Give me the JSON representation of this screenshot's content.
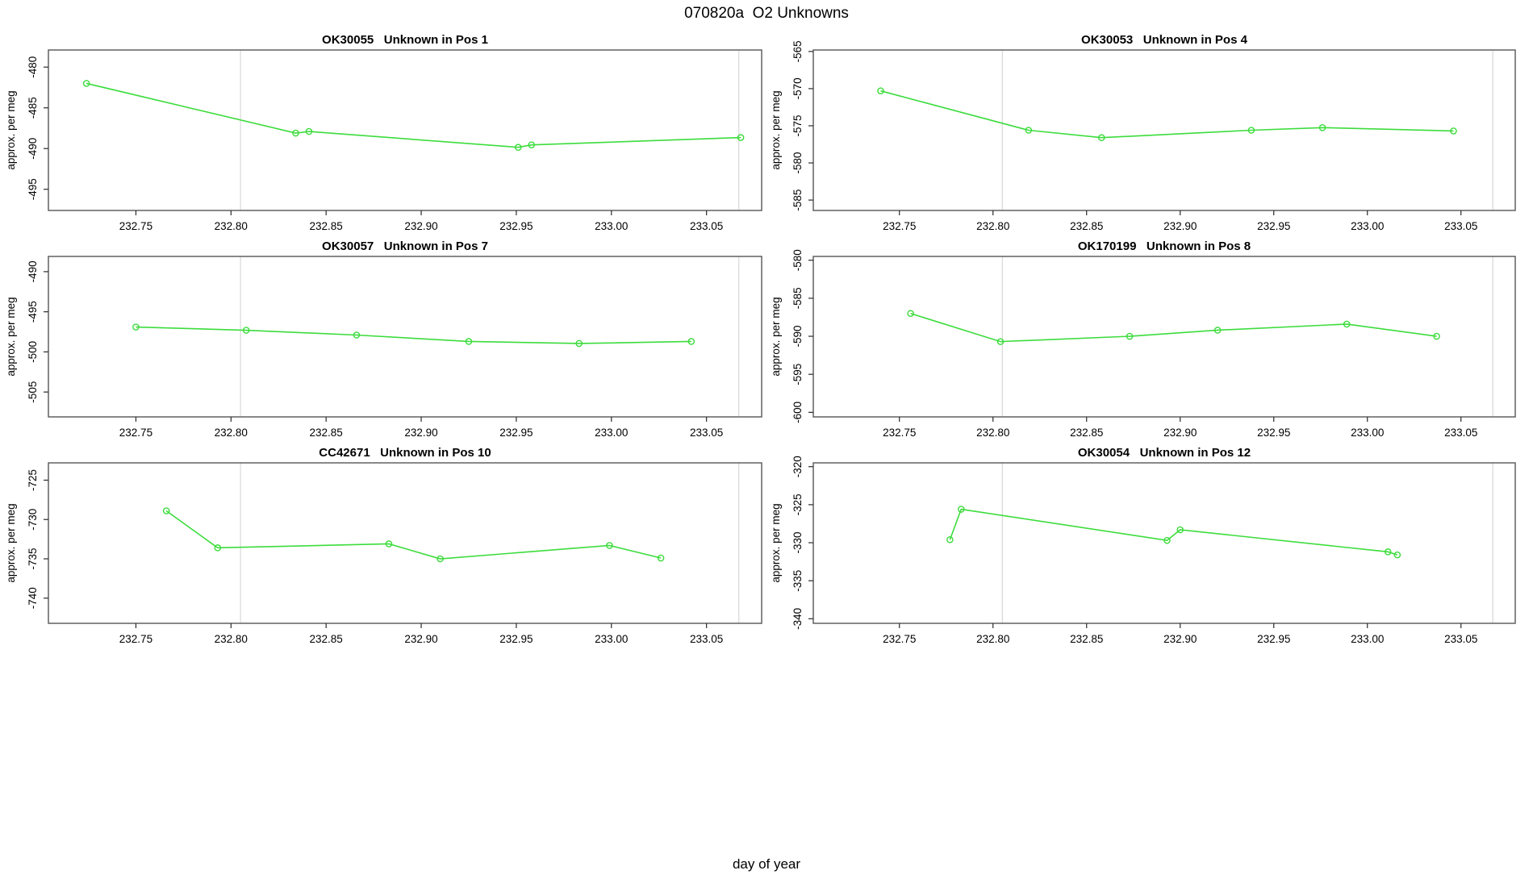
{
  "page_title": "070820a  O2 Unknowns",
  "outer_xlabel": "day of year",
  "ylabel": "approx. per meg",
  "colors": {
    "line_green": "#3cdc3c",
    "gridline_gray": "#d7d7d7",
    "box_border": "#565656",
    "tick_color": "#2a2a2a",
    "text_color": "#000000"
  },
  "chart_data": [
    {
      "type": "line",
      "title": "OK30055   Unknown in Pos 1",
      "sample_id": "OK30055",
      "position_label": "Unknown in Pos 1",
      "x": [
        232.724,
        232.834,
        232.841,
        232.951,
        232.958,
        233.068
      ],
      "y": [
        -482.0,
        -488.1,
        -487.9,
        -489.85,
        -489.55,
        -488.65
      ],
      "xlim": [
        232.704,
        233.079
      ],
      "ylim": [
        -497.6,
        -477.9
      ],
      "xticks": [
        232.75,
        232.8,
        232.85,
        232.9,
        232.95,
        233.0,
        233.05
      ],
      "yticks": [
        -495,
        -490,
        -485,
        -480
      ],
      "vlines": [
        232.805,
        233.067
      ],
      "grid": "vertical-only",
      "legend": "none"
    },
    {
      "type": "line",
      "title": "OK30053   Unknown in Pos 4",
      "sample_id": "OK30053",
      "position_label": "Unknown in Pos 4",
      "x": [
        232.74,
        232.819,
        232.858,
        232.938,
        232.976,
        233.046
      ],
      "y": [
        -570.3,
        -575.6,
        -576.6,
        -575.6,
        -575.25,
        -575.7
      ],
      "xlim": [
        232.704,
        233.079
      ],
      "ylim": [
        -586.4,
        -564.8
      ],
      "xticks": [
        232.75,
        232.8,
        232.85,
        232.9,
        232.95,
        233.0,
        233.05
      ],
      "yticks": [
        -585,
        -580,
        -575,
        -570,
        -565
      ],
      "vlines": [
        232.805,
        233.067
      ],
      "grid": "vertical-only",
      "legend": "none"
    },
    {
      "type": "line",
      "title": "OK30057   Unknown in Pos 7",
      "sample_id": "OK30057",
      "position_label": "Unknown in Pos 7",
      "x": [
        232.75,
        232.808,
        232.866,
        232.925,
        232.983,
        233.042
      ],
      "y": [
        -496.9,
        -497.3,
        -497.9,
        -498.7,
        -498.95,
        -498.7
      ],
      "xlim": [
        232.704,
        233.079
      ],
      "ylim": [
        -508.1,
        -488.1
      ],
      "xticks": [
        232.75,
        232.8,
        232.85,
        232.9,
        232.95,
        233.0,
        233.05
      ],
      "yticks": [
        -505,
        -500,
        -495,
        -490
      ],
      "vlines": [
        232.805,
        233.067
      ],
      "grid": "vertical-only",
      "legend": "none"
    },
    {
      "type": "line",
      "title": "OK170199   Unknown in Pos 8",
      "sample_id": "OK170199",
      "position_label": "Unknown in Pos 8",
      "x": [
        232.756,
        232.804,
        232.873,
        232.92,
        232.989,
        233.037
      ],
      "y": [
        -587.0,
        -590.7,
        -590.0,
        -589.2,
        -588.4,
        -590.0
      ],
      "xlim": [
        232.704,
        233.079
      ],
      "ylim": [
        -600.6,
        -579.5
      ],
      "xticks": [
        232.75,
        232.8,
        232.85,
        232.9,
        232.95,
        233.0,
        233.05
      ],
      "yticks": [
        -600,
        -595,
        -590,
        -585,
        -580
      ],
      "vlines": [
        232.805,
        233.067
      ],
      "grid": "vertical-only",
      "legend": "none"
    },
    {
      "type": "line",
      "title": "CC42671   Unknown in Pos 10",
      "sample_id": "CC42671",
      "position_label": "Unknown in Pos 10",
      "x": [
        232.766,
        232.793,
        232.883,
        232.91,
        232.999,
        233.026
      ],
      "y": [
        -728.9,
        -733.6,
        -733.1,
        -735.0,
        -733.3,
        -734.9
      ],
      "xlim": [
        232.704,
        233.079
      ],
      "ylim": [
        -743.2,
        -722.8
      ],
      "xticks": [
        232.75,
        232.8,
        232.85,
        232.9,
        232.95,
        233.0,
        233.05
      ],
      "yticks": [
        -740,
        -735,
        -730,
        -725
      ],
      "vlines": [
        232.805,
        233.067
      ],
      "grid": "vertical-only",
      "legend": "none"
    },
    {
      "type": "line",
      "title": "OK30054   Unknown in Pos 12",
      "sample_id": "OK30054",
      "position_label": "Unknown in Pos 12",
      "x": [
        232.777,
        232.783,
        232.893,
        232.9,
        233.011,
        233.016
      ],
      "y": [
        -329.6,
        -325.6,
        -329.7,
        -328.3,
        -331.2,
        -331.6
      ],
      "xlim": [
        232.704,
        233.079
      ],
      "ylim": [
        -340.6,
        -319.5
      ],
      "xticks": [
        232.75,
        232.8,
        232.85,
        232.9,
        232.95,
        233.0,
        233.05
      ],
      "yticks": [
        -340,
        -335,
        -330,
        -325,
        -320
      ],
      "vlines": [
        232.805,
        233.067
      ],
      "grid": "vertical-only",
      "legend": "none"
    }
  ]
}
